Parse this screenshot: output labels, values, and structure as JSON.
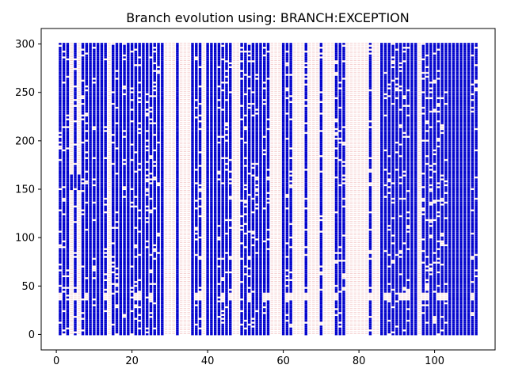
{
  "chart_data": {
    "type": "scatter",
    "title": "Branch evolution using: BRANCH:EXCEPTION",
    "xlabel": "",
    "ylabel": "",
    "xlim": [
      -4,
      116
    ],
    "ylim": [
      -16,
      316
    ],
    "x_ticks": [
      0,
      20,
      40,
      60,
      80,
      100
    ],
    "y_ticks": [
      0,
      50,
      100,
      150,
      200,
      250,
      300
    ],
    "x_tick_labels": [
      "0",
      "20",
      "40",
      "60",
      "80",
      "100"
    ],
    "y_tick_labels": [
      "0",
      "50",
      "100",
      "150",
      "200",
      "250",
      "300"
    ],
    "grid": false,
    "legend": "none",
    "marker": "square",
    "present_color": "#0000cc",
    "absent_color": "#f4c8c8",
    "x_range": [
      1,
      111
    ],
    "y_range": [
      0,
      300
    ],
    "always_present_branches": [
      9,
      11,
      12,
      17,
      19,
      23,
      28,
      32,
      36,
      40,
      41,
      42,
      54,
      60,
      86,
      94,
      95,
      104,
      105,
      106,
      107,
      108,
      109
    ],
    "never_present_branches": [
      14,
      29,
      30,
      31,
      33,
      34,
      35,
      39,
      47,
      48,
      57,
      58,
      59,
      63,
      64,
      65,
      67,
      68,
      69,
      71,
      72,
      73,
      77,
      78,
      79,
      80,
      81,
      82,
      84,
      85,
      96
    ],
    "mostly_present_branches": [
      1,
      2,
      3,
      5,
      7,
      8,
      10,
      13,
      15,
      16,
      18,
      20,
      21,
      22,
      24,
      25,
      26,
      27,
      37,
      38,
      43,
      44,
      45,
      46,
      49,
      50,
      51,
      52,
      53,
      55,
      56,
      61,
      62,
      66,
      70,
      74,
      75,
      76,
      83,
      87,
      88,
      89,
      90,
      91,
      92,
      93,
      97,
      98,
      99,
      100,
      101,
      102,
      103,
      110,
      111
    ],
    "partially_present_branches": [
      4,
      6
    ]
  }
}
